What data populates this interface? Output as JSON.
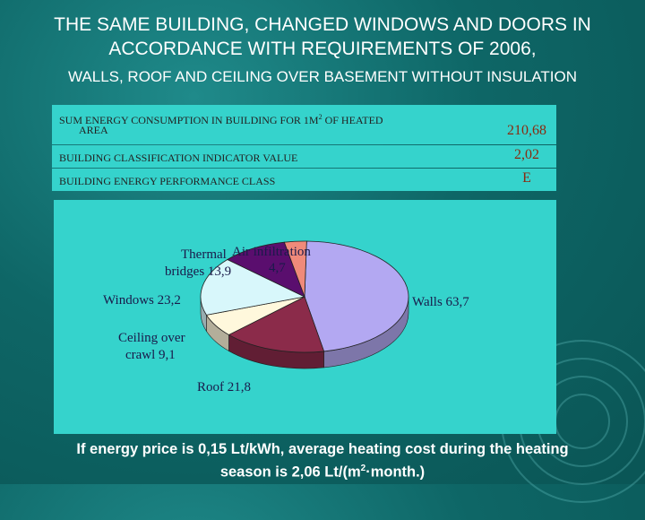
{
  "header": {
    "title_line1": "THE SAME BUILDING, CHANGED WINDOWS AND DOORS IN",
    "title_line2": "ACCORDANCE WITH REQUIREMENTS OF 2006,",
    "subtitle": "WALLS, ROOF AND CEILING OVER BASEMENT WITHOUT INSULATION"
  },
  "table": {
    "row1_label_a": "SUM ENERGY CONSUMPTION IN BUILDING FOR 1M",
    "row1_label_sup": "2",
    "row1_label_b": " OF HEATED",
    "row1_label_c": "AREA",
    "row1_value": "210,68",
    "row2_label": "BUILDING CLASSIFICATION INDICATOR VALUE",
    "row2_value": "2,02",
    "row3_label": "BUILDING ENERGY PERFORMANCE CLASS",
    "row3_value": "E"
  },
  "chart_data": {
    "type": "pie",
    "title": "",
    "slices": [
      {
        "label": "Walls",
        "value": 63.7,
        "display": "Walls 63,7",
        "color": "#b3a8f2"
      },
      {
        "label": "Roof",
        "value": 21.8,
        "display": "Roof 21,8",
        "color": "#8b2b4a"
      },
      {
        "label": "Ceiling over crawl",
        "value": 9.1,
        "display": "Ceiling over crawl 9,1",
        "color": "#fff8dc"
      },
      {
        "label": "Windows",
        "value": 23.2,
        "display": "Windows 23,2",
        "color": "#d8f7fb"
      },
      {
        "label": "Thermal bridges",
        "value": 13.9,
        "display": "Thermal bridges 13,9",
        "color": "#5a0e6e"
      },
      {
        "label": "Air infiltration",
        "value": 4.7,
        "display": "Air infiltration 4,7",
        "color": "#f08a7a"
      }
    ],
    "label_text": {
      "walls": "Walls 63,7",
      "roof": "Roof 21,8",
      "ceiling_1": "Ceiling over",
      "ceiling_2": "crawl 9,1",
      "windows": "Windows 23,2",
      "thermal_1": "Thermal",
      "thermal_2": "bridges 13,9",
      "air_1": "Air infiltration",
      "air_2": "4,7"
    }
  },
  "footer": {
    "line1": "If energy price is 0,15 Lt/kWh, average heating cost during the heating",
    "line2_a": "season is 2,06 Lt/(m",
    "line2_sup": "2",
    "line2_b": "·month.)"
  }
}
